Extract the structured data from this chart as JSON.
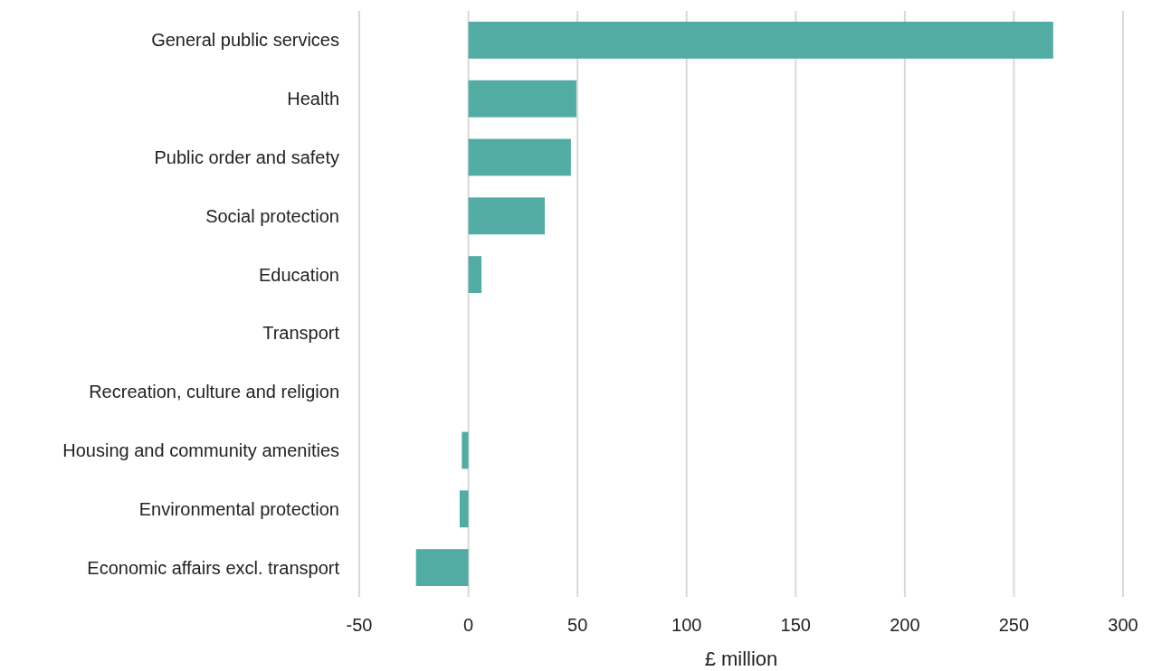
{
  "chart_data": {
    "type": "bar",
    "orientation": "horizontal",
    "xlabel": "£ million",
    "categories": [
      "General public services",
      "Health",
      "Public order and safety",
      "Social protection",
      "Education",
      "Transport",
      "Recreation, culture and religion",
      "Housing and community amenities",
      "Environmental protection",
      "Economic affairs excl. transport"
    ],
    "values": [
      268,
      49.5,
      47,
      35,
      6,
      0,
      0,
      -3,
      -4,
      -24
    ],
    "color": "#52aca3",
    "xlim": [
      -50,
      300
    ],
    "xticks": [
      -50,
      0,
      50,
      100,
      150,
      200,
      250,
      300
    ],
    "grid": "x"
  }
}
